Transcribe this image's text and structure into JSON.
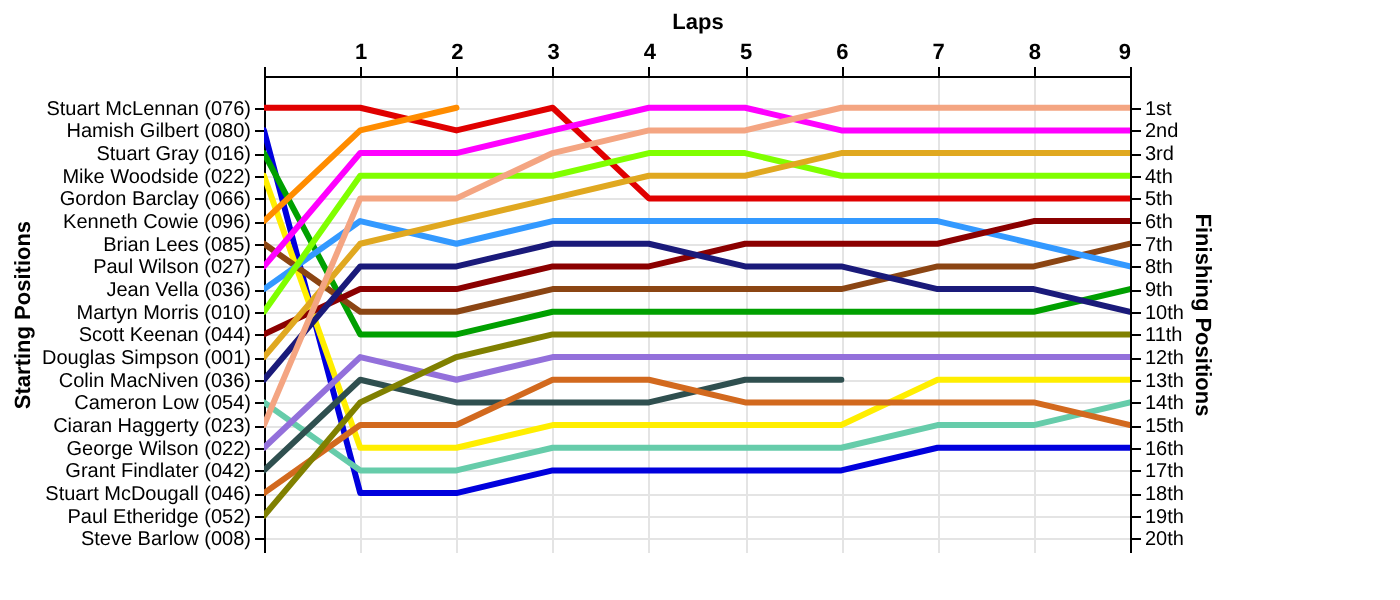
{
  "chart_data": {
    "type": "line",
    "xlabel": "Laps",
    "y2label": "Finishing Positions",
    "x": [
      0,
      1,
      2,
      3,
      4,
      5,
      6,
      7,
      8,
      9
    ],
    "xlim": [
      0,
      9
    ],
    "xticks": [
      {
        "value": 0,
        "label": null
      },
      1,
      2,
      3,
      4,
      5,
      6,
      7,
      8,
      9
    ],
    "y2lim": [
      20.6,
      -0.4
    ],
    "y2ticks": [
      {
        "value": 1,
        "label": "1st"
      },
      {
        "value": 2,
        "label": "2nd"
      },
      {
        "value": 3,
        "label": "3rd"
      },
      {
        "value": 4,
        "label": "4th"
      },
      {
        "value": 5,
        "label": "5th"
      },
      {
        "value": 6,
        "label": "6th"
      },
      {
        "value": 7,
        "label": "7th"
      },
      {
        "value": 8,
        "label": "8th"
      },
      {
        "value": 9,
        "label": "9th"
      },
      {
        "value": 10,
        "label": "10th"
      },
      {
        "value": 11,
        "label": "11th"
      },
      {
        "value": 12,
        "label": "12th"
      },
      {
        "value": 13,
        "label": "13th"
      },
      {
        "value": 14,
        "label": "14th"
      },
      {
        "value": 15,
        "label": "15th"
      },
      {
        "value": 16,
        "label": "16th"
      },
      {
        "value": 17,
        "label": "17th"
      },
      {
        "value": 18,
        "label": "18th"
      },
      {
        "value": 19,
        "label": "19th"
      },
      {
        "value": 20,
        "label": "20th"
      }
    ],
    "annotations": [
      "Stuart McLennan (076)",
      "Hamish Gilbert (080)",
      "Stuart Gray (016)",
      "Mike Woodside (022)",
      "Gordon Barclay (066)",
      "Kenneth Cowie (096)",
      "Brian Lees (085)",
      "Paul Wilson (027)",
      "Jean Vella (036)",
      "Martyn Morris (010)",
      "Scott Keenan (044)",
      "Douglas Simpson (001)",
      "Colin MacNiven (036)",
      "Cameron Low (054)",
      "Ciaran Haggerty (023)",
      "George Wilson (022)",
      "Grant Findlater (042)",
      "Stuart McDougall (046)",
      "Paul Etheridge (052)",
      "Steve Barlow (008)",
      "Starting Positions"
    ],
    "grid": true,
    "legend": false,
    "marker": "none",
    "line_style": "solid",
    "series": [
      {
        "color": "#e00000",
        "axis": "y2",
        "values": [
          1,
          1,
          2,
          1,
          5,
          5,
          5,
          5,
          5,
          5
        ]
      },
      {
        "color": "#0000dd",
        "axis": "y2",
        "values": [
          2,
          18,
          18,
          17,
          17,
          17,
          17,
          16,
          16,
          16
        ]
      },
      {
        "color": "#00a000",
        "axis": "y2",
        "values": [
          3,
          11,
          11,
          10,
          10,
          10,
          10,
          10,
          10,
          9
        ]
      },
      {
        "color": "#ffee00",
        "axis": "y2",
        "values": [
          4,
          16,
          16,
          15,
          15,
          15,
          15,
          13,
          13,
          13
        ]
      },
      {
        "color": "#ff8c00",
        "axis": "y2",
        "values": [
          6,
          2,
          1,
          null,
          null,
          null,
          null,
          null,
          null,
          null
        ]
      },
      {
        "color": "#8b4513",
        "axis": "y2",
        "values": [
          7,
          10,
          10,
          9,
          9,
          9,
          9,
          8,
          8,
          7
        ]
      },
      {
        "color": "#ff00ff",
        "axis": "y2",
        "values": [
          8,
          3,
          3,
          2,
          1,
          1,
          2,
          2,
          2,
          2
        ]
      },
      {
        "color": "#3399ff",
        "axis": "y2",
        "values": [
          9,
          6,
          7,
          6,
          6,
          6,
          6,
          6,
          7,
          8
        ]
      },
      {
        "color": "#80ff00",
        "axis": "y2",
        "values": [
          10,
          4,
          4,
          4,
          3,
          3,
          4,
          4,
          4,
          4
        ]
      },
      {
        "color": "#8b0000",
        "axis": "y2",
        "values": [
          11,
          9,
          9,
          8,
          8,
          7,
          7,
          7,
          6,
          6
        ]
      },
      {
        "color": "#e0a820",
        "axis": "y2",
        "values": [
          12,
          7,
          6,
          5,
          4,
          4,
          3,
          3,
          3,
          3
        ]
      },
      {
        "color": "#1a1a7a",
        "axis": "y2",
        "values": [
          13,
          8,
          8,
          7,
          7,
          8,
          8,
          9,
          9,
          10
        ]
      },
      {
        "color": "#66ccaa",
        "axis": "y2",
        "values": [
          14,
          17,
          17,
          16,
          16,
          16,
          16,
          15,
          15,
          14
        ]
      },
      {
        "color": "#f4a582",
        "axis": "y2",
        "values": [
          15,
          5,
          5,
          3,
          2,
          2,
          1,
          1,
          1,
          1
        ]
      },
      {
        "color": "#9370db",
        "axis": "y2",
        "values": [
          16,
          12,
          13,
          12,
          12,
          12,
          12,
          12,
          12,
          12
        ]
      },
      {
        "color": "#2f4f4f",
        "axis": "y2",
        "values": [
          17,
          13,
          14,
          14,
          14,
          13,
          13,
          null,
          null,
          null
        ]
      },
      {
        "color": "#d2691e",
        "axis": "y2",
        "values": [
          18,
          15,
          15,
          13,
          13,
          14,
          14,
          14,
          14,
          15
        ]
      },
      {
        "color": "#808000",
        "axis": "y2",
        "values": [
          19,
          14,
          12,
          11,
          11,
          11,
          11,
          11,
          11,
          11
        ]
      }
    ]
  }
}
